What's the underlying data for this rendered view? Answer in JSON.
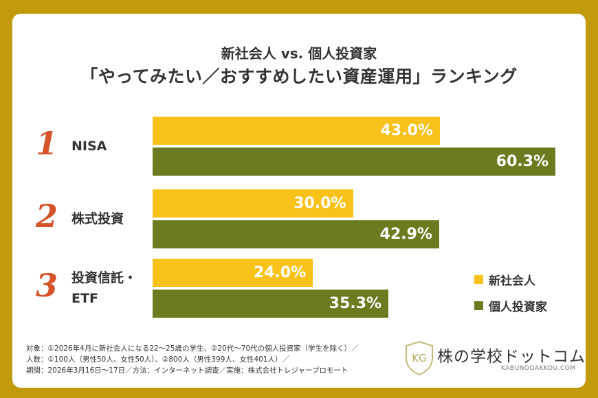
{
  "title_line1": "新社会人 vs. 個人投資家",
  "title_line2": "「やってみたい／おすすめしたい資産運用」ランキング",
  "chart_data": {
    "type": "bar",
    "orientation": "horizontal",
    "categories": [
      "NISA",
      "株式投資",
      "投資信託・ETF"
    ],
    "ranks": [
      "1",
      "2",
      "3"
    ],
    "series": [
      {
        "name": "新社会人",
        "values": [
          43.0,
          30.0,
          24.0
        ],
        "labels": [
          "43.0%",
          "30.0%",
          "24.0%"
        ],
        "color": "#f8c21a"
      },
      {
        "name": "個人投資家",
        "values": [
          60.3,
          42.9,
          35.3
        ],
        "labels": [
          "60.3%",
          "42.9%",
          "35.3%"
        ],
        "color": "#6b7b1f"
      }
    ],
    "unit": "%",
    "legend": "right"
  },
  "category_lines": [
    [
      "NISA"
    ],
    [
      "株式投資"
    ],
    [
      "投資信託・",
      "ETF"
    ]
  ],
  "footnotes": [
    "対象：①2026年4月に新社会人になる22〜25歳の学生、②20代〜70代の個人投資家（学生を除く）／",
    "人数：①100人（男性50人、女性50人）、②800人（男性399人、女性401人）／",
    "期間：2026年3月16日〜17日／方法：インターネット調査／実施：株式会社トレジャープロモート"
  ],
  "logo": {
    "name": "株の学校ドットコム",
    "url_text": "KABUNOGAKKOU.COM",
    "emblem": "KG"
  },
  "colors": {
    "background": "#c39a0c",
    "rank": "#d6532a"
  }
}
